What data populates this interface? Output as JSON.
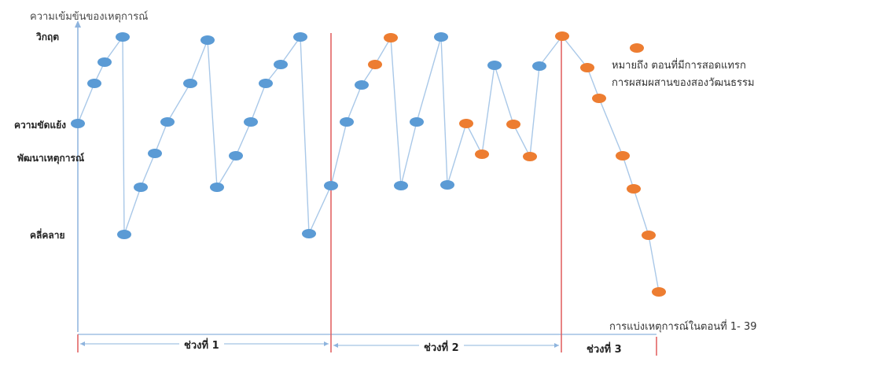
{
  "y_axis_title": "ความเข้มข้นของเหตุการณ์",
  "levels": {
    "crisis": "วิกฤต",
    "conflict": "ความขัดแย้ง",
    "development": "พัฒนาเหตุการณ์",
    "resolution": "คลี่คลาย"
  },
  "legend": {
    "line1": "หมายถึง ตอนที่มีการสอดแทรก",
    "line2": "การผสมผสานของสองวัฒนธรรม"
  },
  "x_caption": "การแบ่งเหตุการณ์ในตอนที่ 1- 39",
  "periods": [
    "ช่วงที่ 1",
    "ช่วงที่ 2",
    "ช่วงที่ 3"
  ],
  "colors": {
    "blue": "#5b9bd5",
    "orange": "#ed7d31",
    "line": "#a9c8e8",
    "divider": "#e05a5a",
    "axis": "#8eb4de"
  }
}
